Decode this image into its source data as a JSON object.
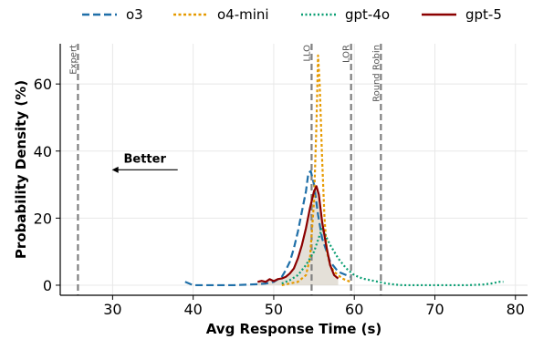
{
  "chart_data": {
    "type": "line",
    "xlabel": "Avg Response Time (s)",
    "ylabel": "Probability Density (%)",
    "xlim": [
      23.5,
      81.5
    ],
    "ylim": [
      -3,
      72
    ],
    "xticks": [
      30,
      40,
      50,
      60,
      70,
      80
    ],
    "yticks": [
      0,
      20,
      40,
      60
    ],
    "grid": true,
    "legend_position": "top",
    "series": [
      {
        "name": "o3",
        "color": "#1f6fa8",
        "dash": "8,4",
        "x": [
          39.0,
          40.0,
          41.0,
          43.0,
          45.0,
          47.0,
          48.0,
          49.0,
          50.0,
          51.0,
          51.5,
          52.0,
          52.5,
          53.0,
          53.5,
          54.0,
          54.3,
          54.6,
          55.0,
          55.5,
          56.0,
          57.0,
          58.0,
          59.0,
          59.5
        ],
        "y": [
          1.0,
          0.0,
          0.0,
          0.0,
          0.0,
          0.2,
          0.3,
          0.5,
          1.0,
          2.5,
          4.5,
          7.0,
          11.0,
          16.0,
          22.0,
          28.0,
          33.5,
          34.0,
          30.0,
          21.0,
          14.0,
          7.0,
          4.0,
          3.0,
          2.5
        ]
      },
      {
        "name": "o4-mini",
        "color": "#e69a00",
        "dash": "3,2.5",
        "x": [
          51.0,
          52.0,
          53.0,
          54.0,
          54.5,
          55.0,
          55.3,
          55.5,
          55.7,
          56.0,
          56.3,
          56.6,
          57.0,
          57.5,
          58.0,
          58.5,
          59.0,
          59.5
        ],
        "y": [
          0.0,
          0.5,
          1.0,
          3.0,
          8.0,
          25.0,
          48.0,
          68.5,
          60.0,
          38.0,
          20.0,
          10.0,
          6.0,
          4.0,
          3.0,
          2.0,
          1.5,
          1.0
        ]
      },
      {
        "name": "gpt-4o",
        "color": "#0a9e73",
        "dash": "2,2.5",
        "x": [
          51.0,
          52.0,
          53.0,
          54.0,
          55.0,
          56.0,
          57.0,
          58.0,
          59.0,
          60.0,
          61.0,
          62.0,
          63.0,
          64.0,
          65.0,
          66.0,
          68.0,
          70.0,
          72.0,
          74.0,
          76.0,
          77.0,
          78.0,
          78.5
        ],
        "y": [
          0.5,
          1.5,
          3.0,
          6.0,
          10.0,
          17.0,
          12.0,
          8.0,
          5.0,
          3.0,
          2.0,
          1.5,
          1.0,
          0.5,
          0.2,
          0.0,
          0.0,
          0.0,
          0.0,
          0.0,
          0.2,
          0.5,
          1.0,
          1.0
        ]
      },
      {
        "name": "gpt-5",
        "color": "#8b0000",
        "dash": "",
        "x": [
          48.0,
          48.5,
          49.0,
          49.5,
          50.0,
          50.5,
          51.0,
          51.5,
          52.0,
          52.5,
          53.0,
          53.5,
          54.0,
          54.5,
          55.0,
          55.3,
          55.6,
          56.0,
          56.5,
          57.0,
          57.5,
          58.0
        ],
        "y": [
          1.0,
          1.3,
          1.0,
          1.8,
          1.2,
          1.8,
          2.0,
          2.5,
          3.5,
          5.0,
          8.0,
          12.0,
          17.0,
          23.0,
          28.0,
          29.5,
          27.0,
          19.0,
          12.0,
          6.0,
          3.0,
          2.0
        ]
      }
    ],
    "vlines": [
      {
        "x": 25.7,
        "label": "Expert"
      },
      {
        "x": 54.7,
        "label": "LLO"
      },
      {
        "x": 59.6,
        "label": "LOR"
      },
      {
        "x": 63.3,
        "label": "Round Robin"
      }
    ],
    "annotations": [
      {
        "text": "Better",
        "arrow": "left",
        "x": 34.0,
        "y": 35.5
      }
    ]
  }
}
